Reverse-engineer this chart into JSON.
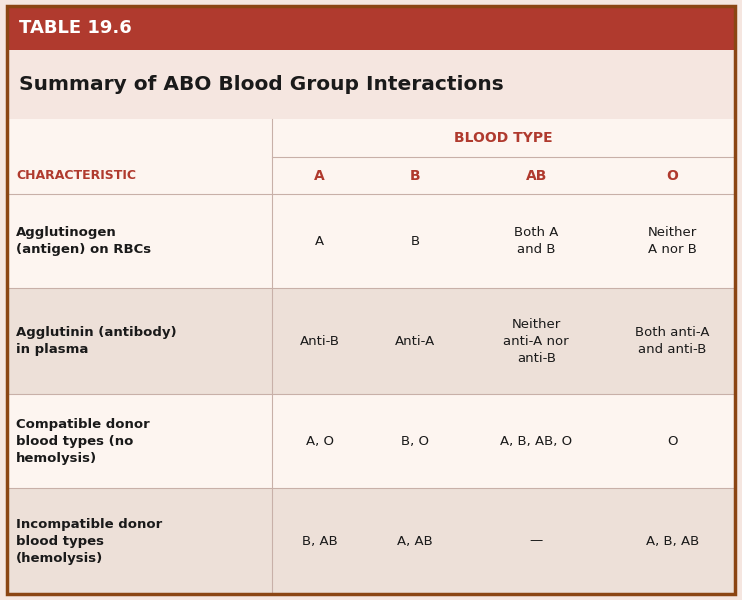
{
  "table_label": "TABLE 19.6",
  "title": "Summary of ABO Blood Group Interactions",
  "blood_type_header": "BLOOD TYPE",
  "col_headers": [
    "CHARACTERISTIC",
    "A",
    "B",
    "AB",
    "O"
  ],
  "rows": [
    {
      "characteristic": "Agglutinogen\n(antigen) on RBCs",
      "A": "A",
      "B": "B",
      "AB": "Both A\nand B",
      "O": "Neither\nA nor B"
    },
    {
      "characteristic": "Agglutinin (antibody)\nin plasma",
      "A": "Anti-B",
      "B": "Anti-A",
      "AB": "Neither\nanti-A nor\nanti-B",
      "O": "Both anti-A\nand anti-B"
    },
    {
      "characteristic": "Compatible donor\nblood types (no\nhemolysis)",
      "A": "A, O",
      "B": "B, O",
      "AB": "A, B, AB, O",
      "O": "O"
    },
    {
      "characteristic": "Incompatible donor\nblood types\n(hemolysis)",
      "A": "B, AB",
      "B": "A, AB",
      "AB": "—",
      "O": "A, B, AB"
    }
  ],
  "colors": {
    "header_bg": "#b03a2e",
    "header_text": "#ffffff",
    "title_bg": "#f5e6e0",
    "title_text": "#1a1a1a",
    "blood_type_header_text": "#b03a2e",
    "col_header_text": "#b03a2e",
    "row_header_text": "#1a1a1a",
    "cell_text": "#1a1a1a",
    "row_bg_odd": "#fdf5f0",
    "row_bg_even": "#ede0d8",
    "border_color": "#c8b0a8",
    "outer_border": "#8b4513"
  },
  "figsize": [
    7.42,
    6.0
  ],
  "dpi": 100
}
